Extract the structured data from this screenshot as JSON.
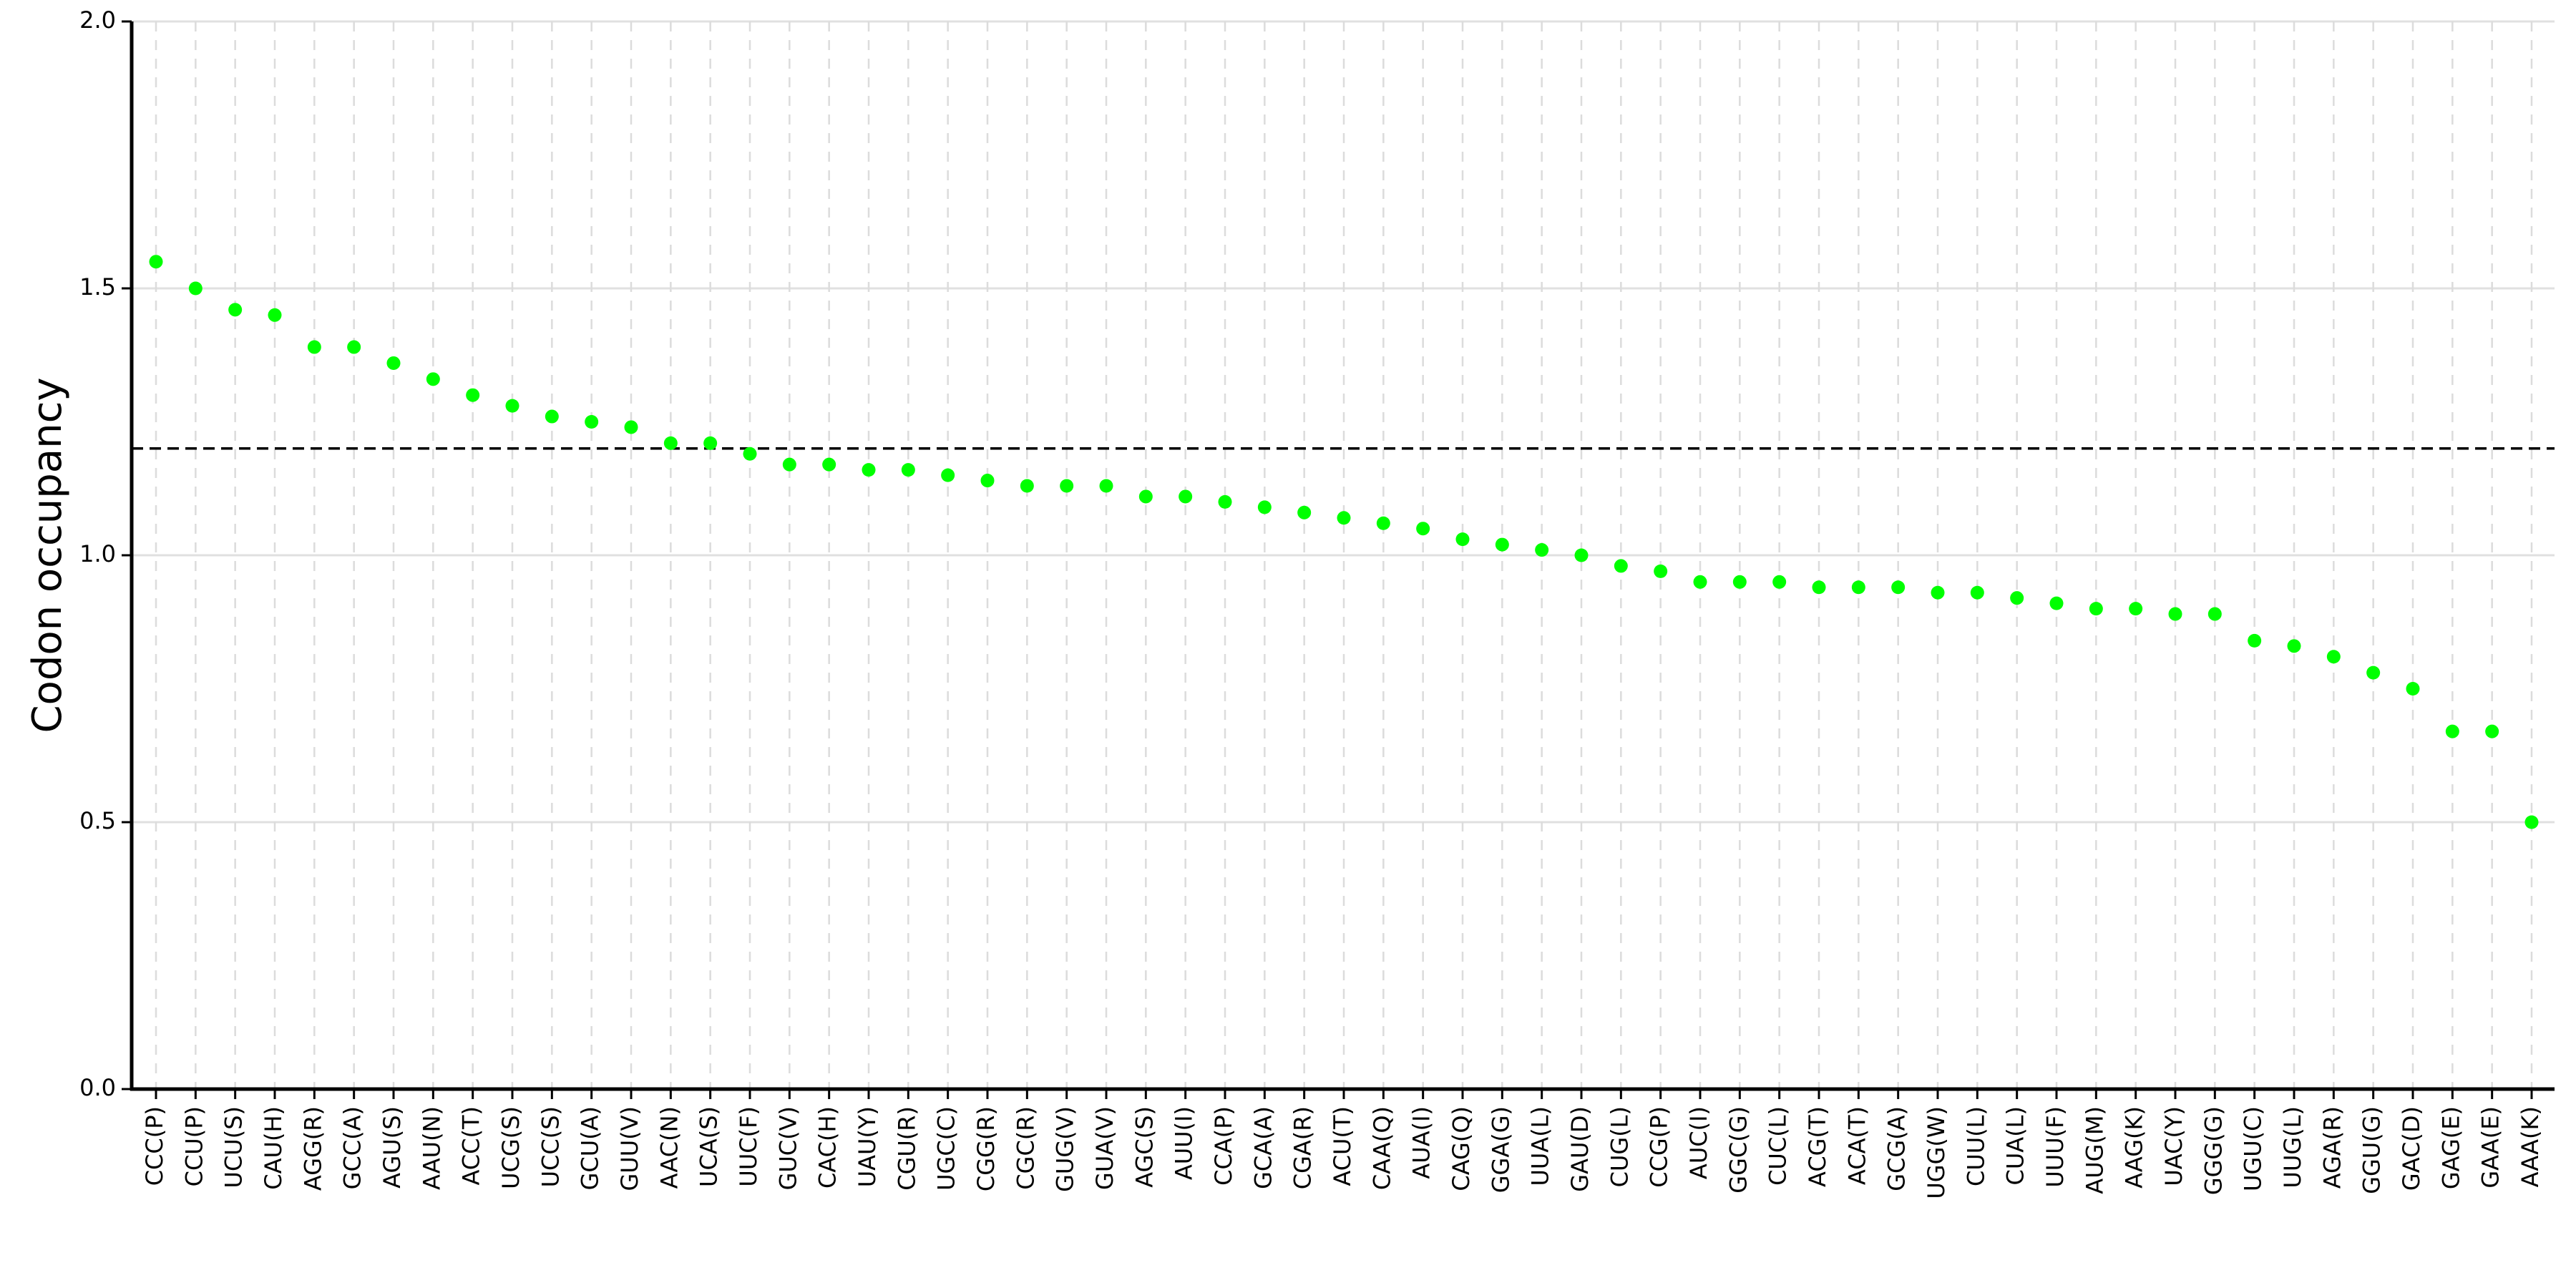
{
  "chart_data": {
    "type": "scatter",
    "y_label": "Codon occupancy",
    "categories": [
      "CCC(P)",
      "CCU(P)",
      "UCU(S)",
      "CAU(H)",
      "AGG(R)",
      "GCC(A)",
      "AGU(S)",
      "AAU(N)",
      "ACC(T)",
      "UCG(S)",
      "UCC(S)",
      "GCU(A)",
      "GUU(V)",
      "AAC(N)",
      "UCA(S)",
      "UUC(F)",
      "GUC(V)",
      "CAC(H)",
      "UAU(Y)",
      "CGU(R)",
      "UGC(C)",
      "CGG(R)",
      "CGC(R)",
      "GUG(V)",
      "GUA(V)",
      "AGC(S)",
      "AUU(I)",
      "CCA(P)",
      "GCA(A)",
      "CGA(R)",
      "ACU(T)",
      "CAA(Q)",
      "AUA(I)",
      "CAG(Q)",
      "GGA(G)",
      "UUA(L)",
      "GAU(D)",
      "CUG(L)",
      "CCG(P)",
      "AUC(I)",
      "GGC(G)",
      "CUC(L)",
      "ACG(T)",
      "ACA(T)",
      "GCG(A)",
      "UGG(W)",
      "CUU(L)",
      "CUA(L)",
      "UUU(F)",
      "AUG(M)",
      "AAG(K)",
      "UAC(Y)",
      "GGG(G)",
      "UGU(C)",
      "UUG(L)",
      "AGA(R)",
      "GGU(G)",
      "GAC(D)",
      "GAG(E)",
      "GAA(E)",
      "AAA(K)"
    ],
    "values": [
      1.55,
      1.5,
      1.46,
      1.45,
      1.39,
      1.39,
      1.36,
      1.33,
      1.3,
      1.28,
      1.26,
      1.25,
      1.24,
      1.21,
      1.21,
      1.19,
      1.17,
      1.17,
      1.16,
      1.16,
      1.15,
      1.14,
      1.13,
      1.13,
      1.13,
      1.11,
      1.11,
      1.1,
      1.09,
      1.08,
      1.07,
      1.06,
      1.05,
      1.03,
      1.02,
      1.01,
      1.0,
      0.98,
      0.97,
      0.95,
      0.95,
      0.95,
      0.94,
      0.94,
      0.94,
      0.93,
      0.93,
      0.92,
      0.91,
      0.9,
      0.9,
      0.89,
      0.89,
      0.84,
      0.83,
      0.81,
      0.78,
      0.75,
      0.67,
      0.67,
      0.5
    ],
    "color": "#00ff00",
    "hline": 1.2,
    "ylim": [
      0,
      2
    ],
    "yticks": [
      {
        "value": 0,
        "label": "0.0"
      },
      0.5,
      {
        "value": 1,
        "label": "1.0"
      },
      1.5,
      {
        "value": 2,
        "label": "2.0"
      }
    ],
    "grid": true
  }
}
